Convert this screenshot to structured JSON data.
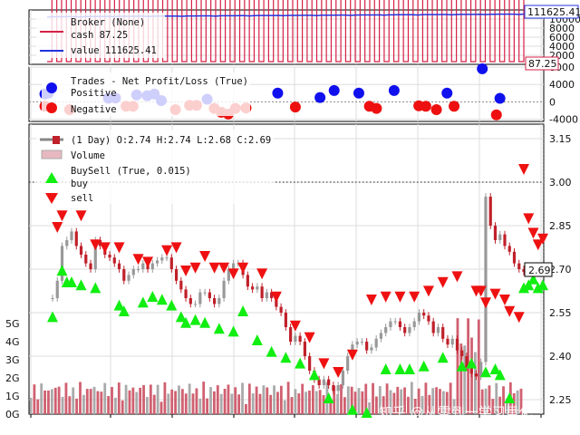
{
  "chart_data": [
    {
      "type": "line",
      "panel": "broker",
      "legend": [
        "Broker (None)",
        "cash 87.25",
        "value 111625.41"
      ],
      "series": [
        {
          "name": "cash",
          "color": "#d62045"
        },
        {
          "name": "value",
          "color": "#2233dd"
        }
      ],
      "y_ticks": [
        "10000",
        "8000",
        "6000",
        "4000",
        "2000"
      ],
      "ylim": [
        0,
        12000
      ],
      "grid": true,
      "last_value_labels": [
        "111625.41",
        "87.25"
      ],
      "cash_mode": "alternates between fully invested (~0) and cash (~111000) each trade"
    },
    {
      "type": "scatter",
      "panel": "trades",
      "legend": [
        "Trades - Net Profit/Loss (True)",
        "Positive",
        "Negative"
      ],
      "colors": {
        "positive": "#1010ee",
        "negative": "#ee1010"
      },
      "y_ticks": [
        "8000",
        "4000",
        "0",
        "-4000"
      ],
      "ylim": [
        -4500,
        8000
      ],
      "positive_points": [
        [
          4,
          1800
        ],
        [
          5,
          2000
        ],
        [
          22,
          850
        ],
        [
          24,
          900
        ],
        [
          30,
          1600
        ],
        [
          33,
          1400
        ],
        [
          35,
          1800
        ],
        [
          37,
          300
        ],
        [
          50,
          600
        ],
        [
          70,
          2000
        ],
        [
          82,
          1000
        ],
        [
          86,
          2600
        ],
        [
          93,
          2000
        ],
        [
          103,
          2600
        ],
        [
          118,
          2000
        ],
        [
          128,
          7600
        ],
        [
          133,
          800
        ]
      ],
      "negative_points": [
        [
          4,
          -1000
        ],
        [
          11,
          -1800
        ],
        [
          27,
          -1000
        ],
        [
          29,
          -1000
        ],
        [
          41,
          -1800
        ],
        [
          45,
          -800
        ],
        [
          47,
          -800
        ],
        [
          52,
          -1500
        ],
        [
          54,
          -2400
        ],
        [
          56,
          -2800
        ],
        [
          58,
          -1500
        ],
        [
          61,
          -1400
        ],
        [
          75,
          -1200
        ],
        [
          96,
          -1000
        ],
        [
          98,
          -1500
        ],
        [
          110,
          -900
        ],
        [
          112,
          -1000
        ],
        [
          115,
          -1800
        ],
        [
          120,
          -1000
        ],
        [
          132,
          -3000
        ]
      ]
    },
    {
      "type": "candlestick",
      "panel": "price",
      "legend": [
        "(1 Day) O:2.74 H:2.74 L:2.68 C:2.69",
        "Volume",
        "BuySell (True, 0.015)",
        "buy",
        "sell"
      ],
      "colors": {
        "up": "#999999",
        "down": "#c0202a",
        "volume_up": "#aaaaaa",
        "volume_down": "#d06070",
        "buy": "#11ee11",
        "sell": "#ee1111"
      },
      "y_ticks": [
        "3.15",
        "3.00",
        "2.85",
        "2.70",
        "2.55",
        "2.40",
        "2.25"
      ],
      "ylim": [
        2.2,
        3.2
      ],
      "threshold_line": 3.0,
      "last_close_label": "2.69",
      "volume_ticks": [
        "5G",
        "4G",
        "3G",
        "2G",
        "1G",
        "0G"
      ],
      "volume_ylim": [
        0,
        6
      ],
      "closes": [
        2.6,
        2.66,
        2.78,
        2.8,
        2.83,
        2.78,
        2.75,
        2.72,
        2.7,
        2.8,
        2.78,
        2.75,
        2.74,
        2.72,
        2.7,
        2.66,
        2.68,
        2.7,
        2.7,
        2.72,
        2.7,
        2.72,
        2.73,
        2.74,
        2.74,
        2.7,
        2.66,
        2.63,
        2.6,
        2.58,
        2.58,
        2.62,
        2.62,
        2.6,
        2.58,
        2.6,
        2.66,
        2.7,
        2.72,
        2.72,
        2.68,
        2.64,
        2.63,
        2.64,
        2.6,
        2.62,
        2.6,
        2.57,
        2.55,
        2.5,
        2.45,
        2.47,
        2.45,
        2.4,
        2.35,
        2.32,
        2.3,
        2.32,
        2.3,
        2.28,
        2.3,
        2.35,
        2.4,
        2.44,
        2.45,
        2.45,
        2.42,
        2.43,
        2.46,
        2.48,
        2.5,
        2.52,
        2.52,
        2.5,
        2.48,
        2.5,
        2.52,
        2.55,
        2.54,
        2.52,
        2.48,
        2.5,
        2.46,
        2.44,
        2.46,
        2.42,
        2.4,
        2.36,
        2.34,
        2.33,
        2.38,
        2.95,
        2.85,
        2.8,
        2.82,
        2.78,
        2.76,
        2.72,
        2.7,
        2.69
      ],
      "buy_markers": [
        [
          0,
          2.58
        ],
        [
          2,
          2.74
        ],
        [
          3,
          2.7
        ],
        [
          4,
          2.7
        ],
        [
          6,
          2.69
        ],
        [
          9,
          2.68
        ],
        [
          14,
          2.62
        ],
        [
          15,
          2.6
        ],
        [
          19,
          2.63
        ],
        [
          21,
          2.65
        ],
        [
          23,
          2.64
        ],
        [
          25,
          2.62
        ],
        [
          27,
          2.58
        ],
        [
          28,
          2.56
        ],
        [
          30,
          2.57
        ],
        [
          32,
          2.56
        ],
        [
          35,
          2.54
        ],
        [
          38,
          2.53
        ],
        [
          40,
          2.6
        ],
        [
          43,
          2.5
        ],
        [
          46,
          2.46
        ],
        [
          49,
          2.44
        ],
        [
          52,
          2.42
        ],
        [
          55,
          2.38
        ],
        [
          58,
          2.3
        ],
        [
          63,
          2.26
        ],
        [
          66,
          2.25
        ],
        [
          70,
          2.4
        ],
        [
          73,
          2.4
        ],
        [
          75,
          2.4
        ],
        [
          78,
          2.41
        ],
        [
          82,
          2.44
        ],
        [
          86,
          2.41
        ],
        [
          88,
          2.42
        ],
        [
          91,
          2.39
        ],
        [
          93,
          2.4
        ],
        [
          94,
          2.38
        ],
        [
          96,
          2.3
        ],
        [
          99,
          2.68
        ],
        [
          100,
          2.69
        ],
        [
          101,
          2.71
        ],
        [
          102,
          2.68
        ],
        [
          103,
          2.69
        ]
      ],
      "sell_markers": [
        [
          1,
          2.8
        ],
        [
          2,
          2.84
        ],
        [
          6,
          2.84
        ],
        [
          9,
          2.74
        ],
        [
          11,
          2.73
        ],
        [
          14,
          2.73
        ],
        [
          18,
          2.69
        ],
        [
          20,
          2.68
        ],
        [
          24,
          2.72
        ],
        [
          26,
          2.73
        ],
        [
          28,
          2.65
        ],
        [
          30,
          2.66
        ],
        [
          32,
          2.7
        ],
        [
          34,
          2.66
        ],
        [
          36,
          2.66
        ],
        [
          38,
          2.64
        ],
        [
          40,
          2.66
        ],
        [
          44,
          2.64
        ],
        [
          47,
          2.56
        ],
        [
          51,
          2.46
        ],
        [
          54,
          2.42
        ],
        [
          57,
          2.33
        ],
        [
          60,
          2.3
        ],
        [
          63,
          2.36
        ],
        [
          67,
          2.55
        ],
        [
          70,
          2.56
        ],
        [
          73,
          2.56
        ],
        [
          76,
          2.56
        ],
        [
          79,
          2.58
        ],
        [
          82,
          2.61
        ],
        [
          85,
          2.63
        ],
        [
          89,
          2.58
        ],
        [
          90,
          2.58
        ],
        [
          91,
          2.54
        ],
        [
          93,
          2.57
        ],
        [
          95,
          2.55
        ],
        [
          96,
          2.51
        ],
        [
          98,
          2.49
        ],
        [
          99,
          3.0
        ],
        [
          100,
          2.83
        ],
        [
          101,
          2.78
        ],
        [
          102,
          2.74
        ],
        [
          103,
          2.76
        ]
      ]
    }
  ],
  "watermark": "知乎 @从零到一学习量化"
}
